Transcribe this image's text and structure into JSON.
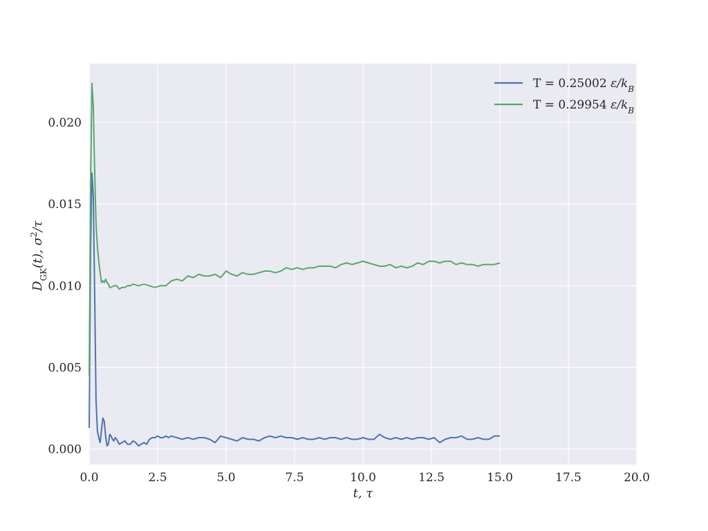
{
  "chart_data": {
    "type": "line",
    "title": "",
    "xlabel": "t, τ",
    "ylabel": "D_GK(t), σ²/τ",
    "xlim": [
      0,
      20
    ],
    "ylim": [
      -0.00095,
      0.0236
    ],
    "xticks": [
      0,
      2.5,
      5,
      7.5,
      10,
      12.5,
      15,
      17.5,
      20
    ],
    "xtick_labels": [
      "0.0",
      "2.5",
      "5.0",
      "7.5",
      "10.0",
      "12.5",
      "15.0",
      "17.5",
      "20.0"
    ],
    "yticks": [
      0,
      0.005,
      0.01,
      0.015,
      0.02
    ],
    "ytick_labels": [
      "0.000",
      "0.005",
      "0.010",
      "0.015",
      "0.020"
    ],
    "grid": true,
    "legend_position": "top-right",
    "background": "#eaeaf2",
    "series": [
      {
        "name": "T = 0.25002 ε/k_B",
        "color": "#4c72b0",
        "x": [
          0,
          0.05,
          0.1,
          0.15,
          0.2,
          0.25,
          0.3,
          0.35,
          0.4,
          0.45,
          0.5,
          0.55,
          0.6,
          0.65,
          0.7,
          0.75,
          0.8,
          0.85,
          0.9,
          0.95,
          1.0,
          1.1,
          1.2,
          1.3,
          1.4,
          1.5,
          1.6,
          1.7,
          1.8,
          1.9,
          2.0,
          2.1,
          2.2,
          2.3,
          2.4,
          2.5,
          2.6,
          2.7,
          2.8,
          2.9,
          3.0,
          3.2,
          3.4,
          3.6,
          3.8,
          4.0,
          4.2,
          4.4,
          4.6,
          4.8,
          5.0,
          5.2,
          5.4,
          5.6,
          5.8,
          6.0,
          6.2,
          6.4,
          6.6,
          6.8,
          7.0,
          7.2,
          7.4,
          7.6,
          7.8,
          8.0,
          8.2,
          8.4,
          8.6,
          8.8,
          9.0,
          9.2,
          9.4,
          9.6,
          9.8,
          10.0,
          10.2,
          10.4,
          10.6,
          10.8,
          11.0,
          11.2,
          11.4,
          11.6,
          11.8,
          12.0,
          12.2,
          12.4,
          12.6,
          12.8,
          13.0,
          13.2,
          13.4,
          13.6,
          13.8,
          14.0,
          14.2,
          14.4,
          14.6,
          14.8,
          15.0
        ],
        "y": [
          0.0013,
          0.012,
          0.0169,
          0.0155,
          0.0095,
          0.003,
          0.0011,
          0.0007,
          0.0004,
          0.0012,
          0.0019,
          0.0017,
          0.0008,
          0.0002,
          0.0003,
          0.0009,
          0.0008,
          0.0006,
          0.0005,
          0.0007,
          0.0006,
          0.0003,
          0.0004,
          0.0005,
          0.0003,
          0.0003,
          0.0005,
          0.0004,
          0.0002,
          0.0003,
          0.0004,
          0.0003,
          0.0006,
          0.0007,
          0.0007,
          0.0008,
          0.0007,
          0.0007,
          0.0008,
          0.0007,
          0.0008,
          0.0007,
          0.0006,
          0.0007,
          0.0006,
          0.0007,
          0.0007,
          0.0006,
          0.0004,
          0.0008,
          0.0007,
          0.0006,
          0.0005,
          0.0007,
          0.0006,
          0.0006,
          0.0005,
          0.0007,
          0.0008,
          0.0007,
          0.0008,
          0.0007,
          0.0007,
          0.0006,
          0.0007,
          0.0006,
          0.0006,
          0.0007,
          0.0006,
          0.0007,
          0.0007,
          0.0006,
          0.0007,
          0.0006,
          0.0006,
          0.0007,
          0.0006,
          0.0006,
          0.0009,
          0.0007,
          0.0006,
          0.0007,
          0.0006,
          0.0007,
          0.0006,
          0.0007,
          0.0007,
          0.0006,
          0.0007,
          0.0004,
          0.0006,
          0.0007,
          0.0007,
          0.0008,
          0.0006,
          0.0006,
          0.0007,
          0.0006,
          0.0006,
          0.0008,
          0.0008
        ]
      },
      {
        "name": "T = 0.29954 ε/k_B",
        "color": "#55a868",
        "x": [
          0,
          0.05,
          0.1,
          0.15,
          0.2,
          0.25,
          0.3,
          0.35,
          0.4,
          0.45,
          0.5,
          0.55,
          0.6,
          0.65,
          0.7,
          0.75,
          0.8,
          0.9,
          1.0,
          1.1,
          1.2,
          1.3,
          1.4,
          1.5,
          1.6,
          1.8,
          2.0,
          2.2,
          2.4,
          2.6,
          2.8,
          3.0,
          3.2,
          3.4,
          3.6,
          3.8,
          4.0,
          4.2,
          4.4,
          4.6,
          4.8,
          5.0,
          5.2,
          5.4,
          5.6,
          5.8,
          6.0,
          6.2,
          6.4,
          6.6,
          6.8,
          7.0,
          7.2,
          7.4,
          7.6,
          7.8,
          8.0,
          8.2,
          8.4,
          8.6,
          8.8,
          9.0,
          9.2,
          9.4,
          9.6,
          9.8,
          10.0,
          10.2,
          10.4,
          10.6,
          10.8,
          11.0,
          11.2,
          11.4,
          11.6,
          11.8,
          12.0,
          12.2,
          12.4,
          12.6,
          12.8,
          13.0,
          13.2,
          13.4,
          13.6,
          13.8,
          14.0,
          14.2,
          14.4,
          14.6,
          14.8,
          15.0
        ],
        "y": [
          0.0045,
          0.016,
          0.0224,
          0.021,
          0.017,
          0.0138,
          0.0124,
          0.0115,
          0.0108,
          0.0102,
          0.0103,
          0.0102,
          0.0104,
          0.0102,
          0.0101,
          0.0099,
          0.0099,
          0.01,
          0.01,
          0.0098,
          0.0099,
          0.0099,
          0.01,
          0.01,
          0.0101,
          0.01,
          0.0101,
          0.01,
          0.0099,
          0.01,
          0.01,
          0.0103,
          0.0104,
          0.0103,
          0.0106,
          0.0105,
          0.0107,
          0.0106,
          0.0106,
          0.0107,
          0.0105,
          0.0109,
          0.0107,
          0.0106,
          0.0108,
          0.0107,
          0.0107,
          0.0108,
          0.0109,
          0.0109,
          0.0108,
          0.0109,
          0.0111,
          0.011,
          0.0111,
          0.011,
          0.0111,
          0.0111,
          0.0112,
          0.0112,
          0.0112,
          0.0111,
          0.0113,
          0.0114,
          0.0113,
          0.0114,
          0.0115,
          0.0114,
          0.0113,
          0.0112,
          0.0112,
          0.0113,
          0.0111,
          0.0112,
          0.0111,
          0.0112,
          0.0114,
          0.0113,
          0.0115,
          0.0115,
          0.0114,
          0.0115,
          0.0115,
          0.0113,
          0.0114,
          0.0113,
          0.0113,
          0.0112,
          0.0113,
          0.0113,
          0.0113,
          0.0114
        ]
      }
    ]
  }
}
